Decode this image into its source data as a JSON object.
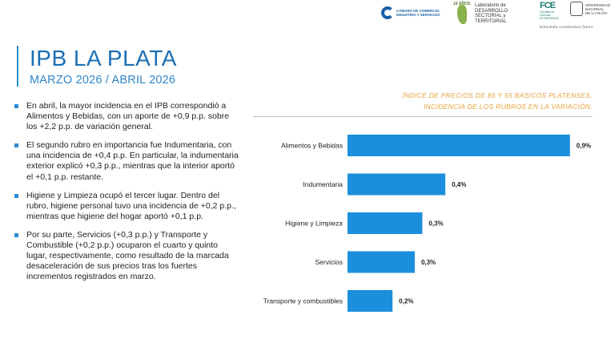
{
  "logos": {
    "ccis_line1": "CÁMARA DE COMERCIO,",
    "ccis_line2": "INDUSTRIA Y SERVICIOS",
    "lab_years": "10 AÑOS",
    "lab_line1": "Laboratorio de DESARROLLO",
    "lab_line2": "SECTORIAL y TERRITORIAL",
    "fce_letters": "FCE",
    "fce_sub1": "Facultad de Ciencias",
    "fce_sub2": "ECONÓMICAS",
    "unlp_line1": "UNIVERSIDAD",
    "unlp_line2": "NACIONAL",
    "unlp_line3": "DE LA PLATA",
    "tagline": "Educando construimos futuro"
  },
  "header": {
    "title": "IPB LA PLATA",
    "subtitle": "MARZO 2026 / ABRIL 2026"
  },
  "bullets": [
    "En abril, la mayor incidencia en el IPB correspondió a Alimentos y Bebidas, con un aporte de +0,9 p.p. sobre los +2,2 p.p. de variación general.",
    "El segundo rubro en importancia fue Indumentaria, con una incidencia de +0,4 p.p. En particular, la indumentaria exterior explicó +0,3 p.p., mientras que la interior aportó el +0,1 p.p. restante.",
    "Higiene y Limpieza ocupó el tercer lugar. Dentro del rubro, higiene personal tuvo una incidencia de +0,2 p.p., mientras que higiene del hogar aportó +0,1 p.p.",
    "Por su parte, Servicios (+0,3 p.p.) y Transporte y Combustible (+0,2 p.p.) ocuparon el cuarto y quinto lugar, respectivamente, como resultado de la marcada desaceleración de sus precios tras los fuertes incrementos registrados en marzo."
  ],
  "chart_data": {
    "type": "bar",
    "orientation": "horizontal",
    "title_line1": "ÍNDICE DE PRECIOS DE 85 Y 55 BÁSICOS PLATENSES.",
    "title_line2": "INCIDENCIA DE LOS RUBROS EN LA VARIACIÓN.",
    "categories": [
      "Alimentos y Bebidas",
      "Indumentaria",
      "Higiene y Limpieza",
      "Servicios",
      "Transporte y combustibles"
    ],
    "values": [
      0.9,
      0.4,
      0.3,
      0.3,
      0.2
    ],
    "value_labels": [
      "0,9%",
      "0,4%",
      "0,3%",
      "0,3%",
      "0,2%"
    ],
    "bar_values_precise": [
      0.91,
      0.4,
      0.306,
      0.275,
      0.184
    ],
    "bar_color": "#1b8fdc",
    "xlim": [
      0,
      0.95
    ]
  }
}
